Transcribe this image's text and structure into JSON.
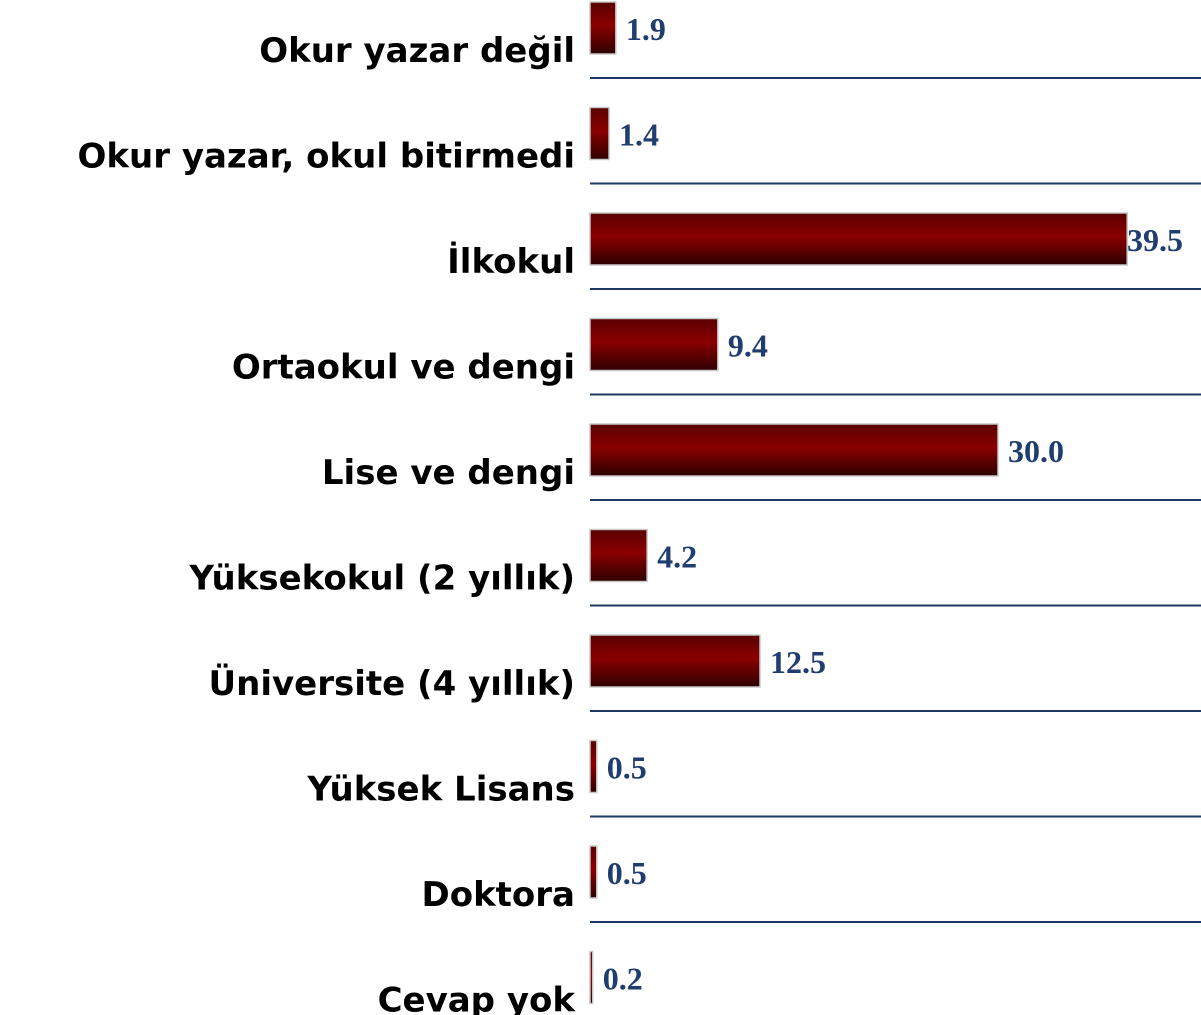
{
  "chart_data": {
    "type": "barh",
    "categories": [
      "Okur yazar değil",
      "Okur yazar, okul bitirmedi",
      "İlkokul",
      "Ortaokul ve dengi",
      "Lise ve dengi",
      "Yüksekokul (2 yıllık)",
      "Üniversite (4 yıllık)",
      "Yüksek Lisans",
      "Doktora",
      "Cevap yok"
    ],
    "values": [
      1.9,
      1.4,
      39.5,
      9.4,
      30.0,
      4.2,
      12.5,
      0.5,
      0.5,
      0.2
    ],
    "value_labels": [
      "1.9",
      "1.4",
      "39.5",
      "9.4",
      "30.0",
      "4.2",
      "12.5",
      "0.5",
      "0.5",
      "0.2"
    ],
    "color": "#7a0000"
  }
}
